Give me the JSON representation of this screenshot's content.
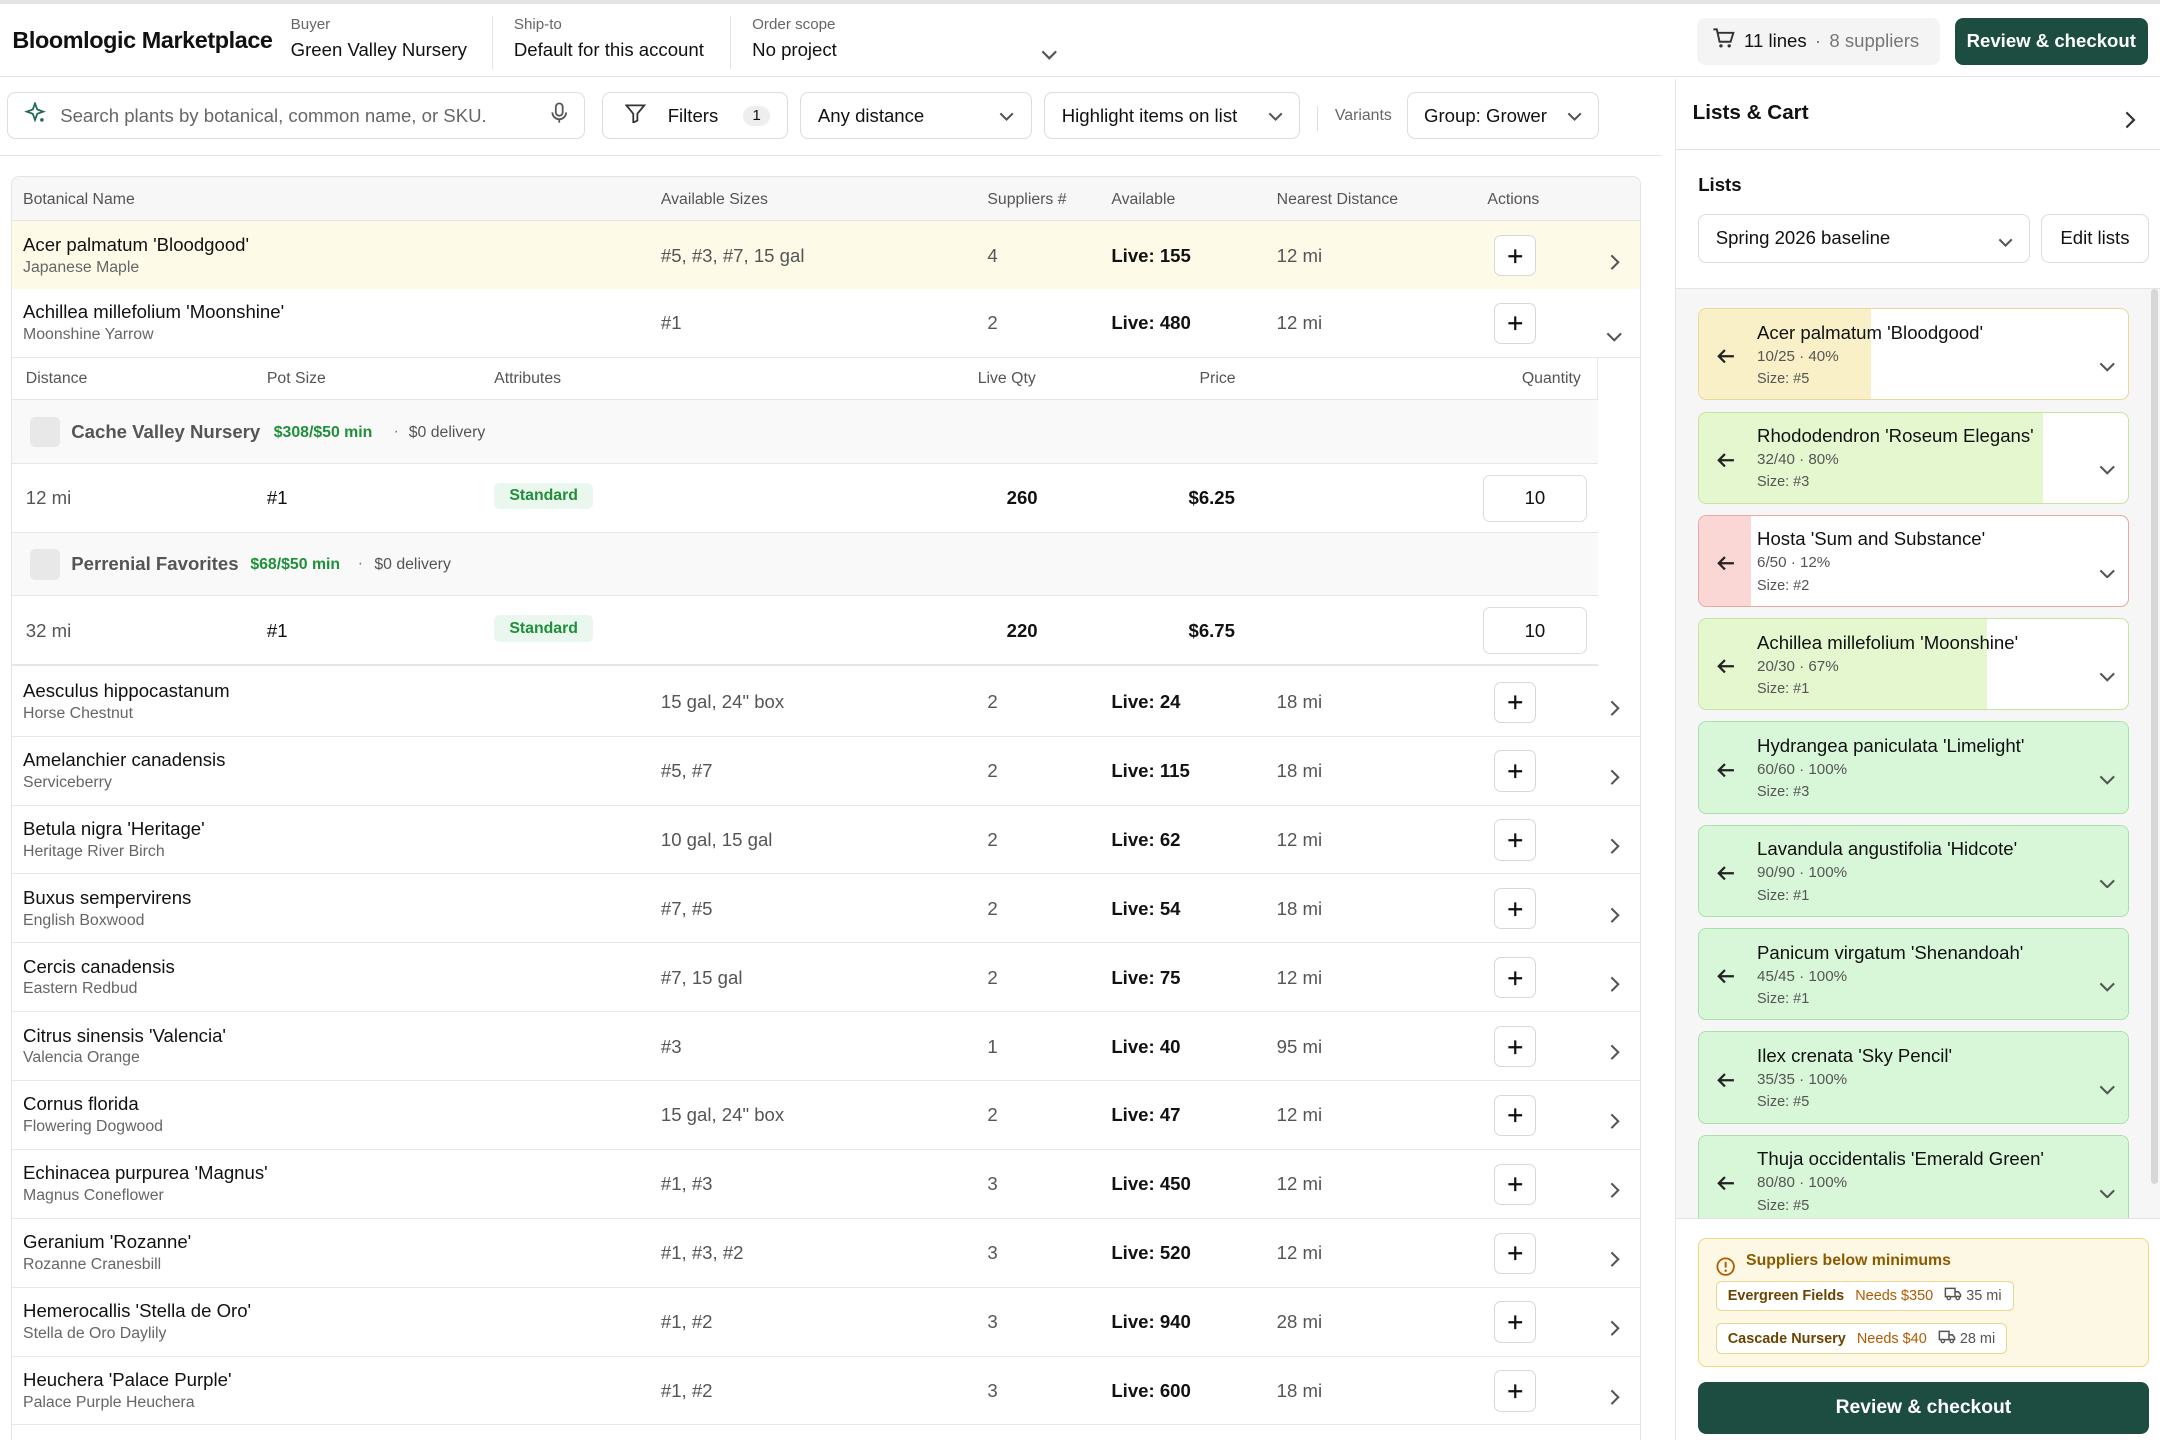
{
  "app": {
    "title": "Bloomlogic Marketplace"
  },
  "header": {
    "buyer_label": "Buyer",
    "buyer_value": "Green Valley Nursery",
    "shipto_label": "Ship-to",
    "shipto_value": "Default for this account",
    "scope_label": "Order scope",
    "scope_value": "No project",
    "cart_lines": "11 lines",
    "cart_sep": "·",
    "cart_suppliers": "8 suppliers",
    "checkout_label": "Review & checkout"
  },
  "filters": {
    "search_placeholder": "Search plants by botanical, common name, or SKU.",
    "filters_label": "Filters",
    "filters_count": "1",
    "distance_value": "Any distance",
    "highlight_value": "Highlight items on list",
    "variants_label": "Variants",
    "group_value": "Group: Grower"
  },
  "table": {
    "headers": [
      "Botanical Name",
      "Available Sizes",
      "Suppliers #",
      "Available",
      "Nearest Distance",
      "Actions"
    ],
    "rows": [
      {
        "name": "Acer palmatum 'Bloodgood'",
        "common": "Japanese Maple",
        "sizes": "#5, #3, #7, 15 gal",
        "suppliers": "4",
        "available": "Live: 155",
        "distance": "12 mi"
      },
      {
        "name": "Achillea millefolium 'Moonshine'",
        "common": "Moonshine Yarrow",
        "sizes": "#1",
        "suppliers": "2",
        "available": "Live: 480",
        "distance": "12 mi"
      },
      {
        "name": "Aesculus hippocastanum",
        "common": "Horse Chestnut",
        "sizes": "15 gal, 24\" box",
        "suppliers": "2",
        "available": "Live: 24",
        "distance": "18 mi"
      },
      {
        "name": "Amelanchier canadensis",
        "common": "Serviceberry",
        "sizes": "#5, #7",
        "suppliers": "2",
        "available": "Live: 115",
        "distance": "18 mi"
      },
      {
        "name": "Betula nigra 'Heritage'",
        "common": "Heritage River Birch",
        "sizes": "10 gal, 15 gal",
        "suppliers": "2",
        "available": "Live: 62",
        "distance": "12 mi"
      },
      {
        "name": "Buxus sempervirens",
        "common": "English Boxwood",
        "sizes": "#7, #5",
        "suppliers": "2",
        "available": "Live: 54",
        "distance": "18 mi"
      },
      {
        "name": "Cercis canadensis",
        "common": "Eastern Redbud",
        "sizes": "#7, 15 gal",
        "suppliers": "2",
        "available": "Live: 75",
        "distance": "12 mi"
      },
      {
        "name": "Citrus sinensis 'Valencia'",
        "common": "Valencia Orange",
        "sizes": "#3",
        "suppliers": "1",
        "available": "Live: 40",
        "distance": "95 mi"
      },
      {
        "name": "Cornus florida",
        "common": "Flowering Dogwood",
        "sizes": "15 gal, 24\" box",
        "suppliers": "2",
        "available": "Live: 47",
        "distance": "12 mi"
      },
      {
        "name": "Echinacea purpurea 'Magnus'",
        "common": "Magnus Coneflower",
        "sizes": "#1, #3",
        "suppliers": "3",
        "available": "Live: 450",
        "distance": "12 mi"
      },
      {
        "name": "Geranium 'Rozanne'",
        "common": "Rozanne Cranesbill",
        "sizes": "#1, #3, #2",
        "suppliers": "3",
        "available": "Live: 520",
        "distance": "12 mi"
      },
      {
        "name": "Hemerocallis 'Stella de Oro'",
        "common": "Stella de Oro Daylily",
        "sizes": "#1, #2",
        "suppliers": "3",
        "available": "Live: 940",
        "distance": "28 mi"
      },
      {
        "name": "Heuchera 'Palace Purple'",
        "common": "Palace Purple Heuchera",
        "sizes": "#1, #2",
        "suppliers": "3",
        "available": "Live: 600",
        "distance": "18 mi"
      }
    ]
  },
  "detail": {
    "headers": [
      "Distance",
      "Pot Size",
      "Attributes",
      "Live Qty",
      "Price",
      "Quantity"
    ],
    "sup1": {
      "name": "Cache Valley Nursery",
      "min": "$308/$50 min",
      "dot": "·",
      "delivery": "$0 delivery"
    },
    "off1": {
      "distance": "12 mi",
      "pot": "#1",
      "attr": "Standard",
      "live": "260",
      "price": "$6.25",
      "qty": "10"
    },
    "sup2": {
      "name": "Perrenial Favorites",
      "min": "$68/$50 min",
      "dot": "·",
      "delivery": "$0 delivery"
    },
    "off2": {
      "distance": "32 mi",
      "pot": "#1",
      "attr": "Standard",
      "live": "220",
      "price": "$6.75",
      "qty": "10"
    }
  },
  "panel": {
    "title": "Lists & Cart",
    "lists_label": "Lists",
    "list_value": "Spring 2026 baseline",
    "edit_label": "Edit lists",
    "cards": [
      {
        "name": "Acer palmatum 'Bloodgood'",
        "stat": "10/25 · 40%",
        "size": "Size: #5",
        "progress": 0.4,
        "tone": "yellow"
      },
      {
        "name": "Rhododendron 'Roseum Elegans'",
        "stat": "32/40 · 80%",
        "size": "Size: #3",
        "progress": 0.8,
        "tone": "lime"
      },
      {
        "name": "Hosta 'Sum and Substance'",
        "stat": "6/50 · 12%",
        "size": "Size: #2",
        "progress": 0.12,
        "tone": "red"
      },
      {
        "name": "Achillea millefolium 'Moonshine'",
        "stat": "20/30 · 67%",
        "size": "Size: #1",
        "progress": 0.67,
        "tone": "lime"
      },
      {
        "name": "Hydrangea paniculata 'Limelight'",
        "stat": "60/60 · 100%",
        "size": "Size: #3",
        "progress": 1.0,
        "tone": "green"
      },
      {
        "name": "Lavandula angustifolia 'Hidcote'",
        "stat": "90/90 · 100%",
        "size": "Size: #1",
        "progress": 1.0,
        "tone": "green"
      },
      {
        "name": "Panicum virgatum 'Shenandoah'",
        "stat": "45/45 · 100%",
        "size": "Size: #1",
        "progress": 1.0,
        "tone": "green"
      },
      {
        "name": "Ilex crenata 'Sky Pencil'",
        "stat": "35/35 · 100%",
        "size": "Size: #5",
        "progress": 1.0,
        "tone": "green"
      },
      {
        "name": "Thuja occidentalis 'Emerald Green'",
        "stat": "80/80 · 100%",
        "size": "Size: #5",
        "progress": 1.0,
        "tone": "green"
      }
    ],
    "minimums": {
      "title": "Suppliers below minimums",
      "items": [
        {
          "supplier": "Evergreen Fields",
          "need": "Needs $350",
          "distance": "35 mi"
        },
        {
          "supplier": "Cascade Nursery",
          "need": "Needs $40",
          "distance": "28 mi"
        }
      ]
    },
    "checkout_label": "Review & checkout"
  },
  "colors": {
    "brand_dark": "#1d4d41",
    "highlight_row": "#fdfbe8",
    "tone_yellow": "#faf0c8",
    "tone_yellow_border": "#ead79a",
    "tone_lime": "#e4f7cf",
    "tone_lime_border": "#c6e59c",
    "tone_red": "#fad7d4",
    "tone_red_border": "#e9a8a2",
    "tone_green": "#d7f7d8",
    "tone_green_border": "#a8dfaa",
    "min_text": "#1f8f3a"
  },
  "icons": [
    "cart-icon",
    "chevron-down-icon",
    "sparkle-icon",
    "mic-icon",
    "filter-icon",
    "plus-icon",
    "chevron-right-icon",
    "arrow-left-icon",
    "alert-circle-icon",
    "truck-icon"
  ]
}
